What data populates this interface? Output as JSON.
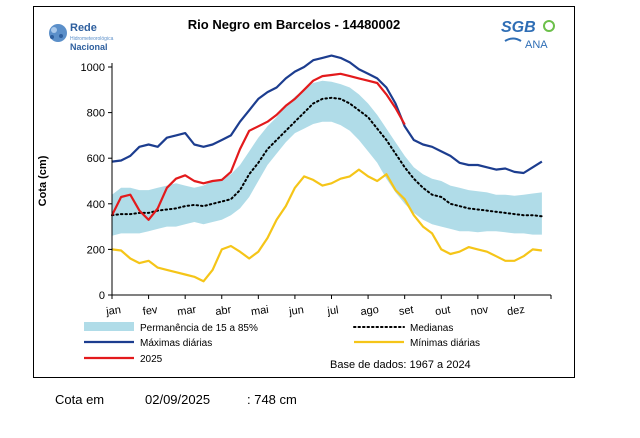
{
  "logos": {
    "rede_name": "Rede",
    "rede_sub": "Hidrometeorológica",
    "rede_sub2": "Nacional",
    "sgb_text": "SGB",
    "ana_text": "ANA"
  },
  "chart_data": {
    "type": "line",
    "title": "Rio Negro em Barcelos - 14480002",
    "ylabel": "Cota (cm)",
    "xlabel": "",
    "ylim": [
      0,
      1000
    ],
    "yticks": [
      0,
      200,
      400,
      600,
      800,
      1000
    ],
    "ytick_labels": [
      "0",
      "200",
      "400",
      "600",
      "800",
      "1000"
    ],
    "xtick_labels": [
      "jan",
      "fev",
      "mar",
      "abr",
      "mai",
      "jun",
      "jul",
      "ago",
      "set",
      "out",
      "nov",
      "dez"
    ],
    "grid": false,
    "legend_placement": "bottom",
    "base_note": "Base de dados: 1967 a 2024",
    "series": [
      {
        "name": "Permanência de 15 a 85%",
        "kind": "band",
        "color": "#b0dce8",
        "x": [
          0,
          0.25,
          0.5,
          0.75,
          1,
          1.25,
          1.5,
          1.75,
          2,
          2.25,
          2.5,
          2.75,
          3,
          3.25,
          3.5,
          3.75,
          4,
          4.25,
          4.5,
          4.75,
          5,
          5.25,
          5.5,
          5.75,
          6,
          6.25,
          6.5,
          6.75,
          7,
          7.25,
          7.5,
          7.75,
          8,
          8.25,
          8.5,
          8.75,
          9,
          9.25,
          9.5,
          9.75,
          10,
          10.25,
          10.5,
          10.75,
          11,
          11.25,
          11.5,
          11.75
        ],
        "upper": [
          440,
          470,
          470,
          460,
          460,
          470,
          480,
          490,
          480,
          470,
          480,
          500,
          510,
          530,
          570,
          630,
          690,
          740,
          780,
          830,
          870,
          900,
          930,
          940,
          935,
          925,
          910,
          880,
          840,
          790,
          730,
          670,
          610,
          560,
          530,
          510,
          500,
          480,
          470,
          460,
          455,
          450,
          440,
          440,
          435,
          440,
          445,
          450
        ],
        "lower": [
          260,
          270,
          270,
          270,
          280,
          290,
          300,
          300,
          310,
          320,
          310,
          320,
          330,
          350,
          380,
          430,
          500,
          570,
          620,
          670,
          710,
          730,
          750,
          760,
          760,
          745,
          720,
          680,
          630,
          580,
          510,
          450,
          400,
          360,
          330,
          310,
          300,
          290,
          280,
          280,
          275,
          280,
          280,
          275,
          270,
          270,
          265,
          265
        ]
      },
      {
        "name": "Medianas",
        "kind": "line",
        "style": "dotted",
        "color": "#000000",
        "x": [
          0,
          0.25,
          0.5,
          0.75,
          1,
          1.25,
          1.5,
          1.75,
          2,
          2.25,
          2.5,
          2.75,
          3,
          3.25,
          3.5,
          3.75,
          4,
          4.25,
          4.5,
          4.75,
          5,
          5.25,
          5.5,
          5.75,
          6,
          6.25,
          6.5,
          6.75,
          7,
          7.25,
          7.5,
          7.75,
          8,
          8.25,
          8.5,
          8.75,
          9,
          9.25,
          9.5,
          9.75,
          10,
          10.25,
          10.5,
          10.75,
          11,
          11.25,
          11.5,
          11.75
        ],
        "values": [
          350,
          355,
          355,
          360,
          360,
          370,
          375,
          380,
          390,
          395,
          390,
          400,
          410,
          420,
          460,
          530,
          580,
          640,
          680,
          720,
          760,
          800,
          840,
          860,
          865,
          860,
          840,
          810,
          780,
          730,
          680,
          620,
          560,
          510,
          470,
          440,
          430,
          400,
          390,
          380,
          375,
          370,
          365,
          360,
          355,
          350,
          350,
          345
        ]
      },
      {
        "name": "Máximas diárias",
        "kind": "line",
        "color": "#1c3d8f",
        "x": [
          0,
          0.25,
          0.5,
          0.75,
          1,
          1.25,
          1.5,
          1.75,
          2,
          2.25,
          2.5,
          2.75,
          3,
          3.25,
          3.5,
          3.75,
          4,
          4.25,
          4.5,
          4.75,
          5,
          5.25,
          5.5,
          5.75,
          6,
          6.25,
          6.5,
          6.75,
          7,
          7.25,
          7.5,
          7.75,
          8,
          8.25,
          8.5,
          8.75,
          9,
          9.25,
          9.5,
          9.75,
          10,
          10.25,
          10.5,
          10.75,
          11,
          11.25,
          11.5,
          11.75
        ],
        "values": [
          585,
          590,
          610,
          650,
          660,
          650,
          690,
          700,
          710,
          660,
          650,
          660,
          680,
          700,
          760,
          810,
          860,
          890,
          910,
          950,
          980,
          1000,
          1030,
          1040,
          1050,
          1040,
          1020,
          990,
          970,
          950,
          910,
          840,
          740,
          680,
          660,
          650,
          630,
          610,
          580,
          570,
          570,
          560,
          550,
          555,
          540,
          535,
          560,
          585
        ]
      },
      {
        "name": "Mínimas diárias",
        "kind": "line",
        "color": "#f5c518",
        "x": [
          0,
          0.25,
          0.5,
          0.75,
          1,
          1.25,
          1.5,
          1.75,
          2,
          2.25,
          2.5,
          2.75,
          3,
          3.25,
          3.5,
          3.75,
          4,
          4.25,
          4.5,
          4.75,
          5,
          5.25,
          5.5,
          5.75,
          6,
          6.25,
          6.5,
          6.75,
          7,
          7.25,
          7.5,
          7.75,
          8,
          8.25,
          8.5,
          8.75,
          9,
          9.25,
          9.5,
          9.75,
          10,
          10.25,
          10.5,
          10.75,
          11,
          11.25,
          11.5,
          11.75
        ],
        "values": [
          200,
          195,
          160,
          140,
          150,
          120,
          110,
          100,
          90,
          80,
          60,
          110,
          200,
          215,
          190,
          160,
          190,
          250,
          330,
          390,
          470,
          520,
          505,
          480,
          490,
          510,
          520,
          550,
          520,
          500,
          530,
          460,
          420,
          350,
          300,
          270,
          200,
          180,
          190,
          210,
          200,
          190,
          170,
          150,
          150,
          170,
          200,
          195
        ]
      },
      {
        "name": "2025",
        "kind": "line",
        "color": "#e31a1c",
        "x": [
          0,
          0.25,
          0.5,
          0.75,
          1,
          1.25,
          1.5,
          1.75,
          2,
          2.25,
          2.5,
          2.75,
          3,
          3.25,
          3.5,
          3.75,
          4,
          4.25,
          4.5,
          4.75,
          5,
          5.25,
          5.5,
          5.75,
          6,
          6.25,
          6.5,
          6.75,
          7,
          7.25,
          7.5,
          7.75,
          8
        ],
        "values": [
          350,
          430,
          440,
          370,
          330,
          380,
          470,
          510,
          525,
          500,
          490,
          500,
          505,
          540,
          640,
          720,
          740,
          760,
          790,
          830,
          860,
          900,
          940,
          960,
          965,
          970,
          960,
          950,
          940,
          930,
          880,
          820,
          748
        ]
      }
    ]
  },
  "footer": {
    "label": "Cota em",
    "date": "02/09/2025",
    "value": ": 748 cm"
  }
}
